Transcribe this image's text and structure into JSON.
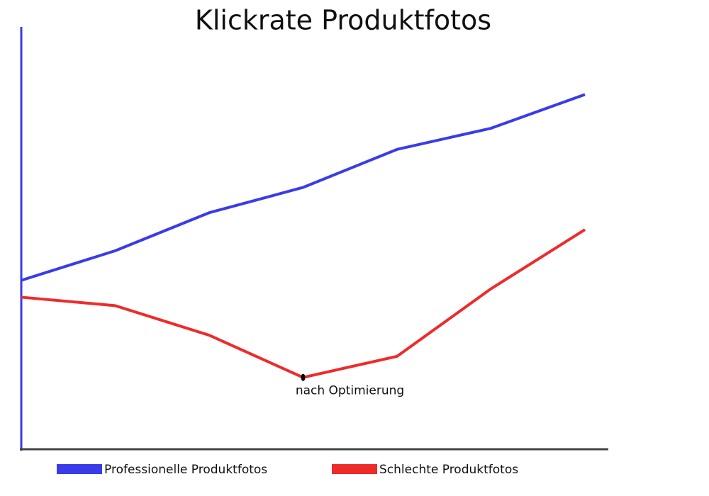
{
  "chart_data": {
    "type": "line",
    "title": "Klickrate Produktfotos",
    "categories": [
      null,
      null,
      null,
      null,
      null,
      null,
      null
    ],
    "series": [
      {
        "name": "Professionelle Produktfotos",
        "color": "#3b3be8",
        "values": [
          40,
          47,
          56,
          62,
          71,
          76,
          84
        ]
      },
      {
        "name": "Schlechte Produktfotos",
        "color": "#ee2b2b",
        "values": [
          36,
          34,
          27,
          17,
          22,
          38,
          52
        ]
      }
    ],
    "annotation": "nach Optimierung",
    "ylim": [
      0,
      100
    ]
  }
}
